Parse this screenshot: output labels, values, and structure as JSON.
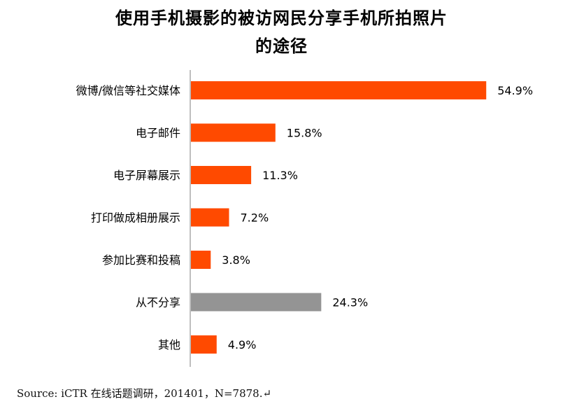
{
  "chart_data": {
    "type": "bar",
    "orientation": "horizontal",
    "title_lines": [
      "使用手机摄影的被访网民分享手机所拍照片",
      "的途径"
    ],
    "categories": [
      "微博/微信等社交媒体",
      "电子邮件",
      "电子屏幕展示",
      "打印做成相册展示",
      "参加比赛和投稿",
      "从不分享",
      "其他"
    ],
    "values": [
      54.9,
      15.8,
      11.3,
      7.2,
      3.8,
      24.3,
      4.9
    ],
    "value_labels": [
      "54.9%",
      "15.8%",
      "11.3%",
      "7.2%",
      "3.8%",
      "24.3%",
      "4.9%"
    ],
    "unit": "%",
    "bar_colors": [
      "#ff4a00",
      "#ff4a00",
      "#ff4a00",
      "#ff4a00",
      "#ff4a00",
      "#949494",
      "#ff4a00"
    ],
    "xlim": [
      0,
      55
    ],
    "grid": false,
    "legend": "none",
    "source": "Source: iCTR 在线话题调研，201401，N=7878.↵"
  }
}
